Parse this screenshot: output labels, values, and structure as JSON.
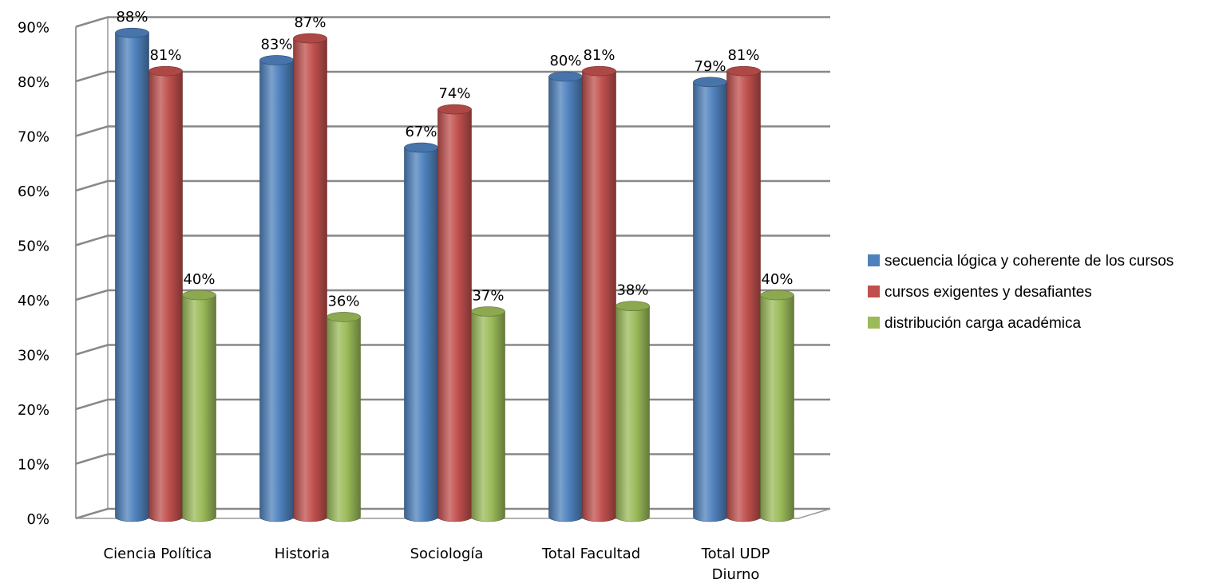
{
  "chart_data": {
    "type": "bar",
    "categories": [
      "Ciencia Política",
      "Historia",
      "Sociología",
      "Total Facultad",
      "Total UDP Diurno"
    ],
    "series": [
      {
        "name": "secuencia lógica y coherente de los cursos",
        "color": "#4f81bd",
        "values": [
          88,
          83,
          67,
          80,
          79
        ]
      },
      {
        "name": "cursos exigentes y desafiantes",
        "color": "#c0504d",
        "values": [
          81,
          87,
          74,
          81,
          81
        ]
      },
      {
        "name": "distribución carga académica",
        "color": "#9bbb59",
        "values": [
          40,
          36,
          37,
          38,
          40
        ]
      }
    ],
    "data_labels": [
      [
        "88%",
        "81%",
        "40%"
      ],
      [
        "83%",
        "87%",
        "36%"
      ],
      [
        "67%",
        "74%",
        "37%"
      ],
      [
        "80%",
        "81%",
        "38%"
      ],
      [
        "79%",
        "81%",
        "40%"
      ]
    ],
    "category_labels": [
      [
        "Ciencia Política"
      ],
      [
        "Historia"
      ],
      [
        "Sociología"
      ],
      [
        "Total Facultad"
      ],
      [
        "Total UDP",
        "Diurno"
      ]
    ],
    "yticks": [
      "0%",
      "10%",
      "20%",
      "30%",
      "40%",
      "50%",
      "60%",
      "70%",
      "80%",
      "90%"
    ],
    "ylim": [
      0,
      90
    ],
    "grid": true,
    "legend_position": "right",
    "style": "3d-cylinder"
  }
}
